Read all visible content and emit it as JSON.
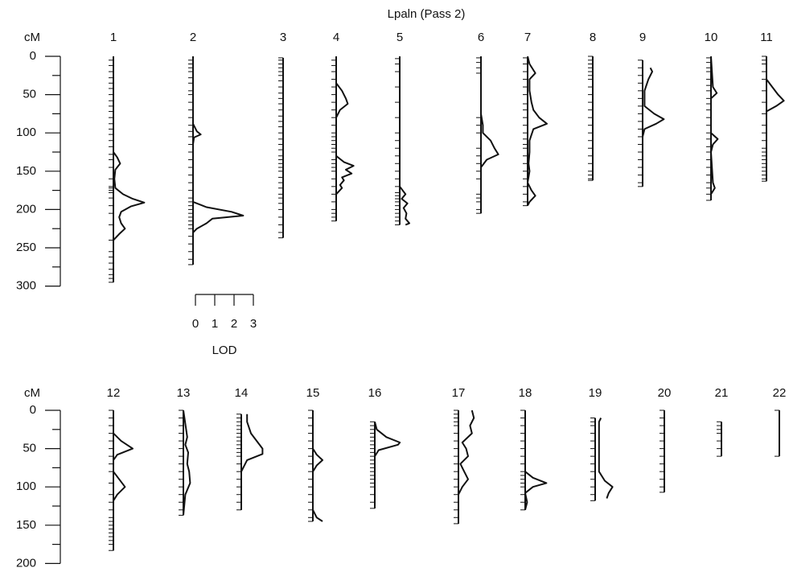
{
  "chart_data": [
    {
      "type": "linkage-map",
      "title": "Lpaln (Pass 2)",
      "y_label": "cM",
      "ylim": [
        0,
        300
      ],
      "yticks": [
        0,
        50,
        100,
        150,
        200,
        250,
        300
      ],
      "minor_yticks": [
        25,
        75,
        125,
        175,
        225,
        275
      ],
      "lod_scale": {
        "ticks": [
          0,
          1,
          2,
          3
        ],
        "label": "LOD"
      },
      "chromosomes": [
        {
          "name": "1",
          "length": 295,
          "markers": [
            5,
            12,
            20,
            28,
            35,
            42,
            50,
            58,
            65,
            72,
            80,
            88,
            95,
            102,
            110,
            118,
            128,
            135,
            145,
            160,
            170,
            172,
            175,
            178,
            185,
            195,
            205,
            220,
            240,
            255,
            262,
            270,
            278,
            285,
            290,
            295
          ],
          "lod_cm": [
            0,
            125,
            132,
            140,
            148,
            160,
            172,
            180,
            186,
            191,
            196,
            203,
            210,
            218,
            225,
            232,
            240,
            295
          ],
          "lod": [
            0,
            0,
            0.2,
            0.35,
            0.1,
            0.05,
            0.1,
            0.5,
            1.0,
            1.6,
            0.9,
            0.4,
            0.3,
            0.4,
            0.6,
            0.3,
            0,
            0
          ]
        },
        {
          "name": "2",
          "length": 272,
          "markers": [
            5,
            10,
            15,
            20,
            28,
            35,
            45,
            50,
            60,
            70,
            80,
            90,
            98,
            105,
            115,
            125,
            135,
            145,
            155,
            165,
            175,
            185,
            190,
            195,
            200,
            205,
            210,
            215,
            220,
            225,
            235,
            245,
            255,
            265,
            272
          ],
          "lod_cm": [
            0,
            88,
            98,
            102,
            106,
            115,
            190,
            197,
            203,
            208,
            212,
            218,
            225,
            230,
            272
          ],
          "lod": [
            0,
            0,
            0.2,
            0.4,
            0.05,
            0,
            0,
            0.7,
            2.0,
            2.6,
            1.0,
            0.7,
            0.2,
            0,
            0
          ]
        },
        {
          "name": "3",
          "length": 237,
          "markers": [
            2,
            5,
            10,
            15,
            20,
            25,
            32,
            40,
            48,
            55,
            62,
            70,
            78,
            85,
            92,
            100,
            108,
            115,
            122,
            130,
            135,
            140,
            145,
            150,
            158,
            165,
            172,
            180,
            185,
            192,
            200,
            210,
            220,
            230,
            237
          ]
        },
        {
          "name": "4",
          "length": 215,
          "markers": [
            5,
            12,
            20,
            30,
            40,
            50,
            60,
            70,
            80,
            90,
            100,
            105,
            110,
            115,
            120,
            125,
            135,
            140,
            145,
            150,
            160,
            170,
            180,
            190,
            200,
            205,
            210,
            215
          ],
          "lod_cm": [
            0,
            35,
            45,
            55,
            62,
            70,
            80,
            130,
            138,
            143,
            148,
            153,
            158,
            162,
            168,
            172,
            180,
            215
          ],
          "lod": [
            0,
            0,
            0.3,
            0.5,
            0.6,
            0.2,
            0,
            0,
            0.4,
            0.9,
            0.5,
            0.8,
            0.3,
            0.4,
            0.2,
            0.3,
            0,
            0
          ]
        },
        {
          "name": "5",
          "length": 220,
          "markers": [
            3,
            10,
            20,
            40,
            60,
            80,
            100,
            110,
            120,
            130,
            140,
            150,
            160,
            170,
            178,
            182,
            186,
            190,
            195,
            200,
            205,
            210,
            215,
            220
          ],
          "lod_cm": [
            0,
            170,
            180,
            186,
            192,
            198,
            205,
            212,
            218,
            220
          ],
          "lod": [
            0,
            0,
            0.3,
            0.1,
            0.4,
            0.2,
            0.35,
            0.3,
            0.5,
            0.3
          ]
        },
        {
          "name": "6",
          "length": 205,
          "markers": [
            2,
            8,
            15,
            22,
            80,
            90,
            100,
            120,
            130,
            140,
            150,
            160,
            180,
            185,
            190,
            200,
            205
          ],
          "lod_cm": [
            0,
            75,
            90,
            100,
            110,
            120,
            128,
            135,
            145,
            205
          ],
          "lod": [
            0,
            0,
            0.1,
            0.1,
            0.5,
            0.7,
            0.9,
            0.3,
            0,
            0
          ]
        },
        {
          "name": "7",
          "length": 195,
          "markers": [
            2,
            10,
            20,
            30,
            40,
            50,
            62,
            70,
            80,
            90,
            100,
            108,
            115,
            120,
            130,
            140,
            150,
            160,
            170,
            180,
            190,
            195
          ],
          "lod_cm": [
            0,
            10,
            22,
            30,
            45,
            60,
            70,
            80,
            88,
            95,
            110,
            125,
            140,
            150,
            165,
            175,
            182,
            190,
            195
          ],
          "lod": [
            0,
            0.1,
            0.4,
            0.1,
            0.1,
            0.2,
            0.3,
            0.6,
            1.0,
            0.3,
            0.1,
            0.1,
            0.05,
            0.1,
            0,
            0.2,
            0.4,
            0.1,
            0
          ]
        },
        {
          "name": "8",
          "length": 162,
          "markers": [
            0,
            5,
            10,
            15,
            20,
            25,
            30,
            40,
            50,
            60,
            70,
            80,
            90,
            100,
            110,
            120,
            130,
            140,
            150,
            155,
            160,
            162
          ]
        },
        {
          "name": "9",
          "length": 170,
          "markers": [
            5,
            15,
            25,
            35,
            45,
            55,
            65,
            75,
            85,
            95,
            105,
            115,
            125,
            135,
            145,
            155,
            165,
            170
          ],
          "lod_cm": [
            15,
            20,
            30,
            45,
            65,
            75,
            82,
            88,
            95,
            105,
            170
          ],
          "lod": [
            0.4,
            0.5,
            0.3,
            0.1,
            0.1,
            0.6,
            1.1,
            0.7,
            0.1,
            0,
            0
          ]
        },
        {
          "name": "10",
          "length": 188,
          "markers": [
            2,
            8,
            15,
            20,
            30,
            38,
            45,
            55,
            62,
            70,
            80,
            90,
            100,
            108,
            118,
            125,
            135,
            145,
            155,
            165,
            172,
            180,
            188
          ],
          "lod_cm": [
            0,
            40,
            48,
            55,
            100,
            108,
            115,
            125,
            165,
            172,
            180,
            188
          ],
          "lod": [
            0,
            0.1,
            0.3,
            0,
            0,
            0.35,
            0.1,
            0,
            0.1,
            0.2,
            0,
            0
          ]
        },
        {
          "name": "11",
          "length": 163,
          "markers": [
            0,
            5,
            10,
            20,
            30,
            45,
            60,
            75,
            90,
            100,
            110,
            120,
            125,
            130,
            135,
            140,
            145,
            150,
            155,
            160,
            163
          ],
          "lod_cm": [
            0,
            30,
            40,
            50,
            58,
            65,
            72,
            163
          ],
          "lod": [
            0,
            0,
            0.3,
            0.6,
            0.9,
            0.5,
            0,
            0
          ]
        }
      ]
    },
    {
      "type": "linkage-map",
      "y_label": "cM",
      "ylim": [
        0,
        200
      ],
      "yticks": [
        0,
        50,
        100,
        150,
        200
      ],
      "minor_yticks": [
        25,
        75,
        125,
        175
      ],
      "chromosomes": [
        {
          "name": "12",
          "length": 183,
          "markers": [
            0,
            10,
            20,
            30,
            40,
            50,
            60,
            70,
            80,
            95,
            110,
            120,
            130,
            140,
            145,
            150,
            155,
            160,
            165,
            170,
            175,
            183
          ],
          "lod_cm": [
            0,
            30,
            40,
            50,
            58,
            65,
            80,
            90,
            100,
            110,
            118,
            183
          ],
          "lod": [
            0,
            0,
            0.4,
            1.0,
            0.2,
            0,
            0,
            0.3,
            0.6,
            0.2,
            0,
            0
          ]
        },
        {
          "name": "13",
          "length": 137,
          "markers": [
            0,
            10,
            20,
            30,
            40,
            50,
            60,
            70,
            80,
            90,
            100,
            110,
            120,
            130,
            137
          ],
          "lod_cm": [
            0,
            35,
            45,
            55,
            70,
            80,
            95,
            110,
            137
          ],
          "lod": [
            0,
            0.2,
            0.1,
            0.25,
            0.2,
            0.3,
            0.35,
            0.1,
            0
          ]
        },
        {
          "name": "14",
          "length": 130,
          "markers": [
            5,
            10,
            15,
            20,
            25,
            30,
            35,
            40,
            45,
            50,
            55,
            60,
            70,
            80,
            90,
            100,
            110,
            120,
            130
          ],
          "lod_cm": [
            5,
            15,
            30,
            40,
            50,
            57,
            65,
            80,
            130
          ],
          "lod": [
            0.3,
            0.3,
            0.5,
            0.8,
            1.1,
            1.1,
            0.3,
            0,
            0
          ]
        },
        {
          "name": "15",
          "length": 145,
          "markers": [
            0,
            10,
            20,
            30,
            40,
            50,
            60,
            70,
            80,
            90,
            100,
            110,
            120,
            130,
            140,
            145
          ],
          "lod_cm": [
            0,
            50,
            58,
            65,
            72,
            80,
            130,
            140,
            145
          ],
          "lod": [
            0,
            0,
            0.2,
            0.5,
            0.2,
            0,
            0,
            0.2,
            0.5
          ]
        },
        {
          "name": "16",
          "length": 128,
          "markers": [
            15,
            20,
            25,
            30,
            35,
            40,
            45,
            50,
            55,
            60,
            65,
            70,
            75,
            80,
            85,
            90,
            95,
            100,
            110,
            120,
            128
          ],
          "lod_cm": [
            15,
            25,
            35,
            42,
            45,
            52,
            60,
            128
          ],
          "lod": [
            0,
            0.1,
            0.6,
            1.3,
            1.2,
            0.2,
            0,
            0
          ]
        },
        {
          "name": "17",
          "length": 148,
          "markers": [
            0,
            5,
            10,
            15,
            20,
            30,
            40,
            50,
            60,
            70,
            80,
            90,
            100,
            110,
            120,
            130,
            140,
            148
          ],
          "lod_cm": [
            0,
            10,
            20,
            30,
            42,
            50,
            60,
            70,
            80,
            90,
            100,
            110,
            120,
            148
          ],
          "lod": [
            0.7,
            0.8,
            0.6,
            0.7,
            0.2,
            0.4,
            0.5,
            0.1,
            0.3,
            0.5,
            0.2,
            0,
            0,
            0
          ]
        },
        {
          "name": "18",
          "length": 130,
          "markers": [
            0,
            10,
            20,
            30,
            40,
            50,
            60,
            70,
            80,
            85,
            90,
            95,
            100,
            110,
            120,
            130
          ],
          "lod_cm": [
            0,
            80,
            88,
            95,
            100,
            108,
            120,
            130
          ],
          "lod": [
            0,
            0,
            0.4,
            1.1,
            0.4,
            0,
            0.1,
            0
          ]
        },
        {
          "name": "19",
          "length": 118,
          "markers": [
            10,
            15,
            20,
            30,
            40,
            50,
            60,
            70,
            80,
            90,
            100,
            110,
            118
          ],
          "lod_cm": [
            10,
            15,
            20,
            80,
            92,
            100,
            108,
            115
          ],
          "lod": [
            0.3,
            0.2,
            0.2,
            0.2,
            0.5,
            0.9,
            0.7,
            0.6
          ]
        },
        {
          "name": "20",
          "length": 107,
          "markers": [
            0,
            10,
            20,
            30,
            40,
            50,
            60,
            70,
            80,
            90,
            100,
            107
          ]
        },
        {
          "name": "21",
          "length": 60,
          "markers": [
            15,
            20,
            25,
            30,
            40,
            50,
            60
          ]
        },
        {
          "name": "22",
          "length": 60,
          "markers": [
            0,
            60
          ]
        }
      ]
    }
  ]
}
